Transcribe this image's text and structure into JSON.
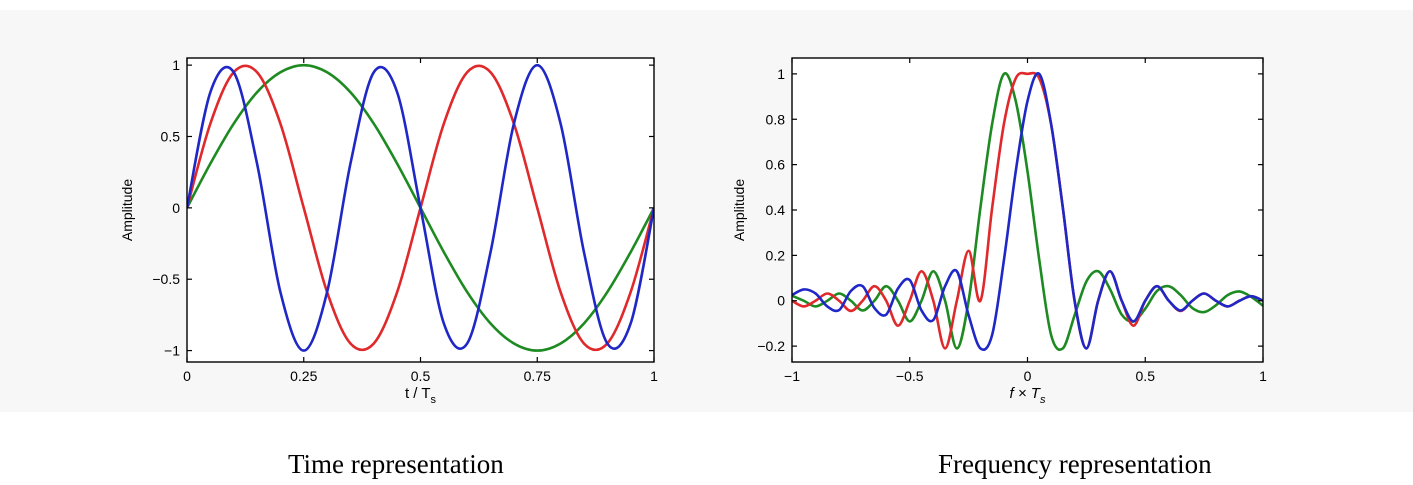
{
  "captions": {
    "left": "Time representation",
    "right": "Frequency representation"
  },
  "colors": {
    "red": "#e0292b",
    "green": "#1e8a22",
    "blue": "#1f28c6",
    "axis": "#000000",
    "band": "#f7f7f7"
  },
  "chart_data": [
    {
      "type": "line",
      "title": "",
      "xlabel": "t / T",
      "xlabel_sub": "s",
      "ylabel": "Amplitude",
      "xlim": [
        0,
        1
      ],
      "ylim": [
        -1.08,
        1.05
      ],
      "xticks": [
        0,
        0.25,
        0.5,
        0.75,
        1
      ],
      "xtick_labels": [
        "0",
        "0.25",
        "0.5",
        "0.75",
        "1"
      ],
      "yticks": [
        1,
        0.5,
        0,
        -0.5,
        -1
      ],
      "ytick_labels": [
        "1",
        "0.5",
        "0",
        "−0.5",
        "−1"
      ],
      "x": [
        0,
        0.05,
        0.1,
        0.15,
        0.2,
        0.25,
        0.3,
        0.35,
        0.4,
        0.45,
        0.5,
        0.55,
        0.6,
        0.65,
        0.7,
        0.75,
        0.8,
        0.85,
        0.9,
        0.95,
        1
      ],
      "series": [
        {
          "color": "green",
          "values": [
            0,
            0.31,
            0.59,
            0.81,
            0.95,
            1,
            0.95,
            0.81,
            0.59,
            0.31,
            0,
            -0.31,
            -0.59,
            -0.81,
            -0.95,
            -1,
            -0.95,
            -0.81,
            -0.59,
            -0.31,
            0
          ]
        },
        {
          "color": "red",
          "values": [
            0,
            0.59,
            0.95,
            0.95,
            0.59,
            0,
            -0.59,
            -0.95,
            -0.95,
            -0.59,
            0,
            0.59,
            0.95,
            0.95,
            0.59,
            0,
            -0.59,
            -0.95,
            -0.95,
            -0.59,
            0
          ]
        },
        {
          "color": "blue",
          "values": [
            0,
            0.81,
            0.95,
            0.31,
            -0.59,
            -1,
            -0.59,
            0.31,
            0.95,
            0.81,
            0,
            -0.81,
            -0.95,
            -0.31,
            0.59,
            1,
            0.59,
            -0.31,
            -0.95,
            -0.81,
            0
          ]
        }
      ]
    },
    {
      "type": "line",
      "title": "",
      "xlabel": "f × T",
      "xlabel_sub": "s",
      "ylabel": "Amplitude",
      "xlim": [
        -1,
        1
      ],
      "ylim": [
        -0.27,
        1.07
      ],
      "xticks": [
        -1,
        -0.5,
        0,
        0.5,
        1
      ],
      "xtick_labels": [
        "−1",
        "−0.5",
        "0",
        "0.5",
        "1"
      ],
      "yticks": [
        1,
        0.8,
        0.6,
        0.4,
        0.2,
        0,
        -0.2
      ],
      "ytick_labels": [
        "1",
        "0.8",
        "0.6",
        "0.4",
        "0.2",
        "0",
        "−0.2"
      ],
      "x": [
        -1,
        -0.95,
        -0.9,
        -0.85,
        -0.8,
        -0.75,
        -0.7,
        -0.65,
        -0.6,
        -0.55,
        -0.5,
        -0.45,
        -0.4,
        -0.35,
        -0.3,
        -0.25,
        -0.2,
        -0.15,
        -0.1,
        -0.05,
        0,
        0.05,
        0.1,
        0.15,
        0.2,
        0.25,
        0.3,
        0.35,
        0.4,
        0.45,
        0.5,
        0.55,
        0.6,
        0.65,
        0.7,
        0.75,
        0.8,
        0.85,
        0.9,
        0.95,
        1
      ],
      "series": [
        {
          "color": "green",
          "values": [
            0.022,
            0,
            -0.025,
            0,
            0.032,
            0,
            -0.043,
            0,
            0.064,
            0,
            -0.091,
            0,
            0.13,
            0,
            -0.21,
            0,
            0.41,
            0.78,
            1,
            0.88,
            0.57,
            0.18,
            -0.15,
            -0.21,
            -0.064,
            0.085,
            0.13,
            0.052,
            -0.061,
            -0.091,
            -0.035,
            0.043,
            0.064,
            0.025,
            -0.032,
            -0.05,
            -0.02,
            0.025,
            0.041,
            0.017,
            -0.022
          ]
        },
        {
          "color": "red",
          "values": [
            0,
            -0.025,
            0,
            0.032,
            0,
            -0.045,
            0,
            0.064,
            0,
            -0.11,
            0,
            0.13,
            0,
            -0.21,
            0,
            0.22,
            0,
            0.41,
            0.78,
            0.98,
            1,
            0.98,
            0.78,
            0.41,
            0,
            -0.21,
            0,
            0.13,
            0,
            -0.11,
            0,
            0.064,
            0,
            -0.045,
            0,
            0.032,
            0,
            -0.025,
            0,
            0.02,
            0
          ]
        },
        {
          "color": "blue",
          "values": [
            0.025,
            0.05,
            0.032,
            -0.025,
            -0.041,
            0.043,
            0.064,
            -0.032,
            -0.061,
            0.054,
            0.091,
            -0.043,
            -0.085,
            0.064,
            0.13,
            -0.064,
            -0.21,
            -0.15,
            0.18,
            0.57,
            0.88,
            1,
            0.78,
            0.41,
            0,
            -0.21,
            0,
            0.13,
            0,
            -0.091,
            0,
            0.064,
            0,
            -0.043,
            0,
            0.032,
            0,
            -0.025,
            0,
            0.02,
            0
          ]
        }
      ]
    }
  ]
}
